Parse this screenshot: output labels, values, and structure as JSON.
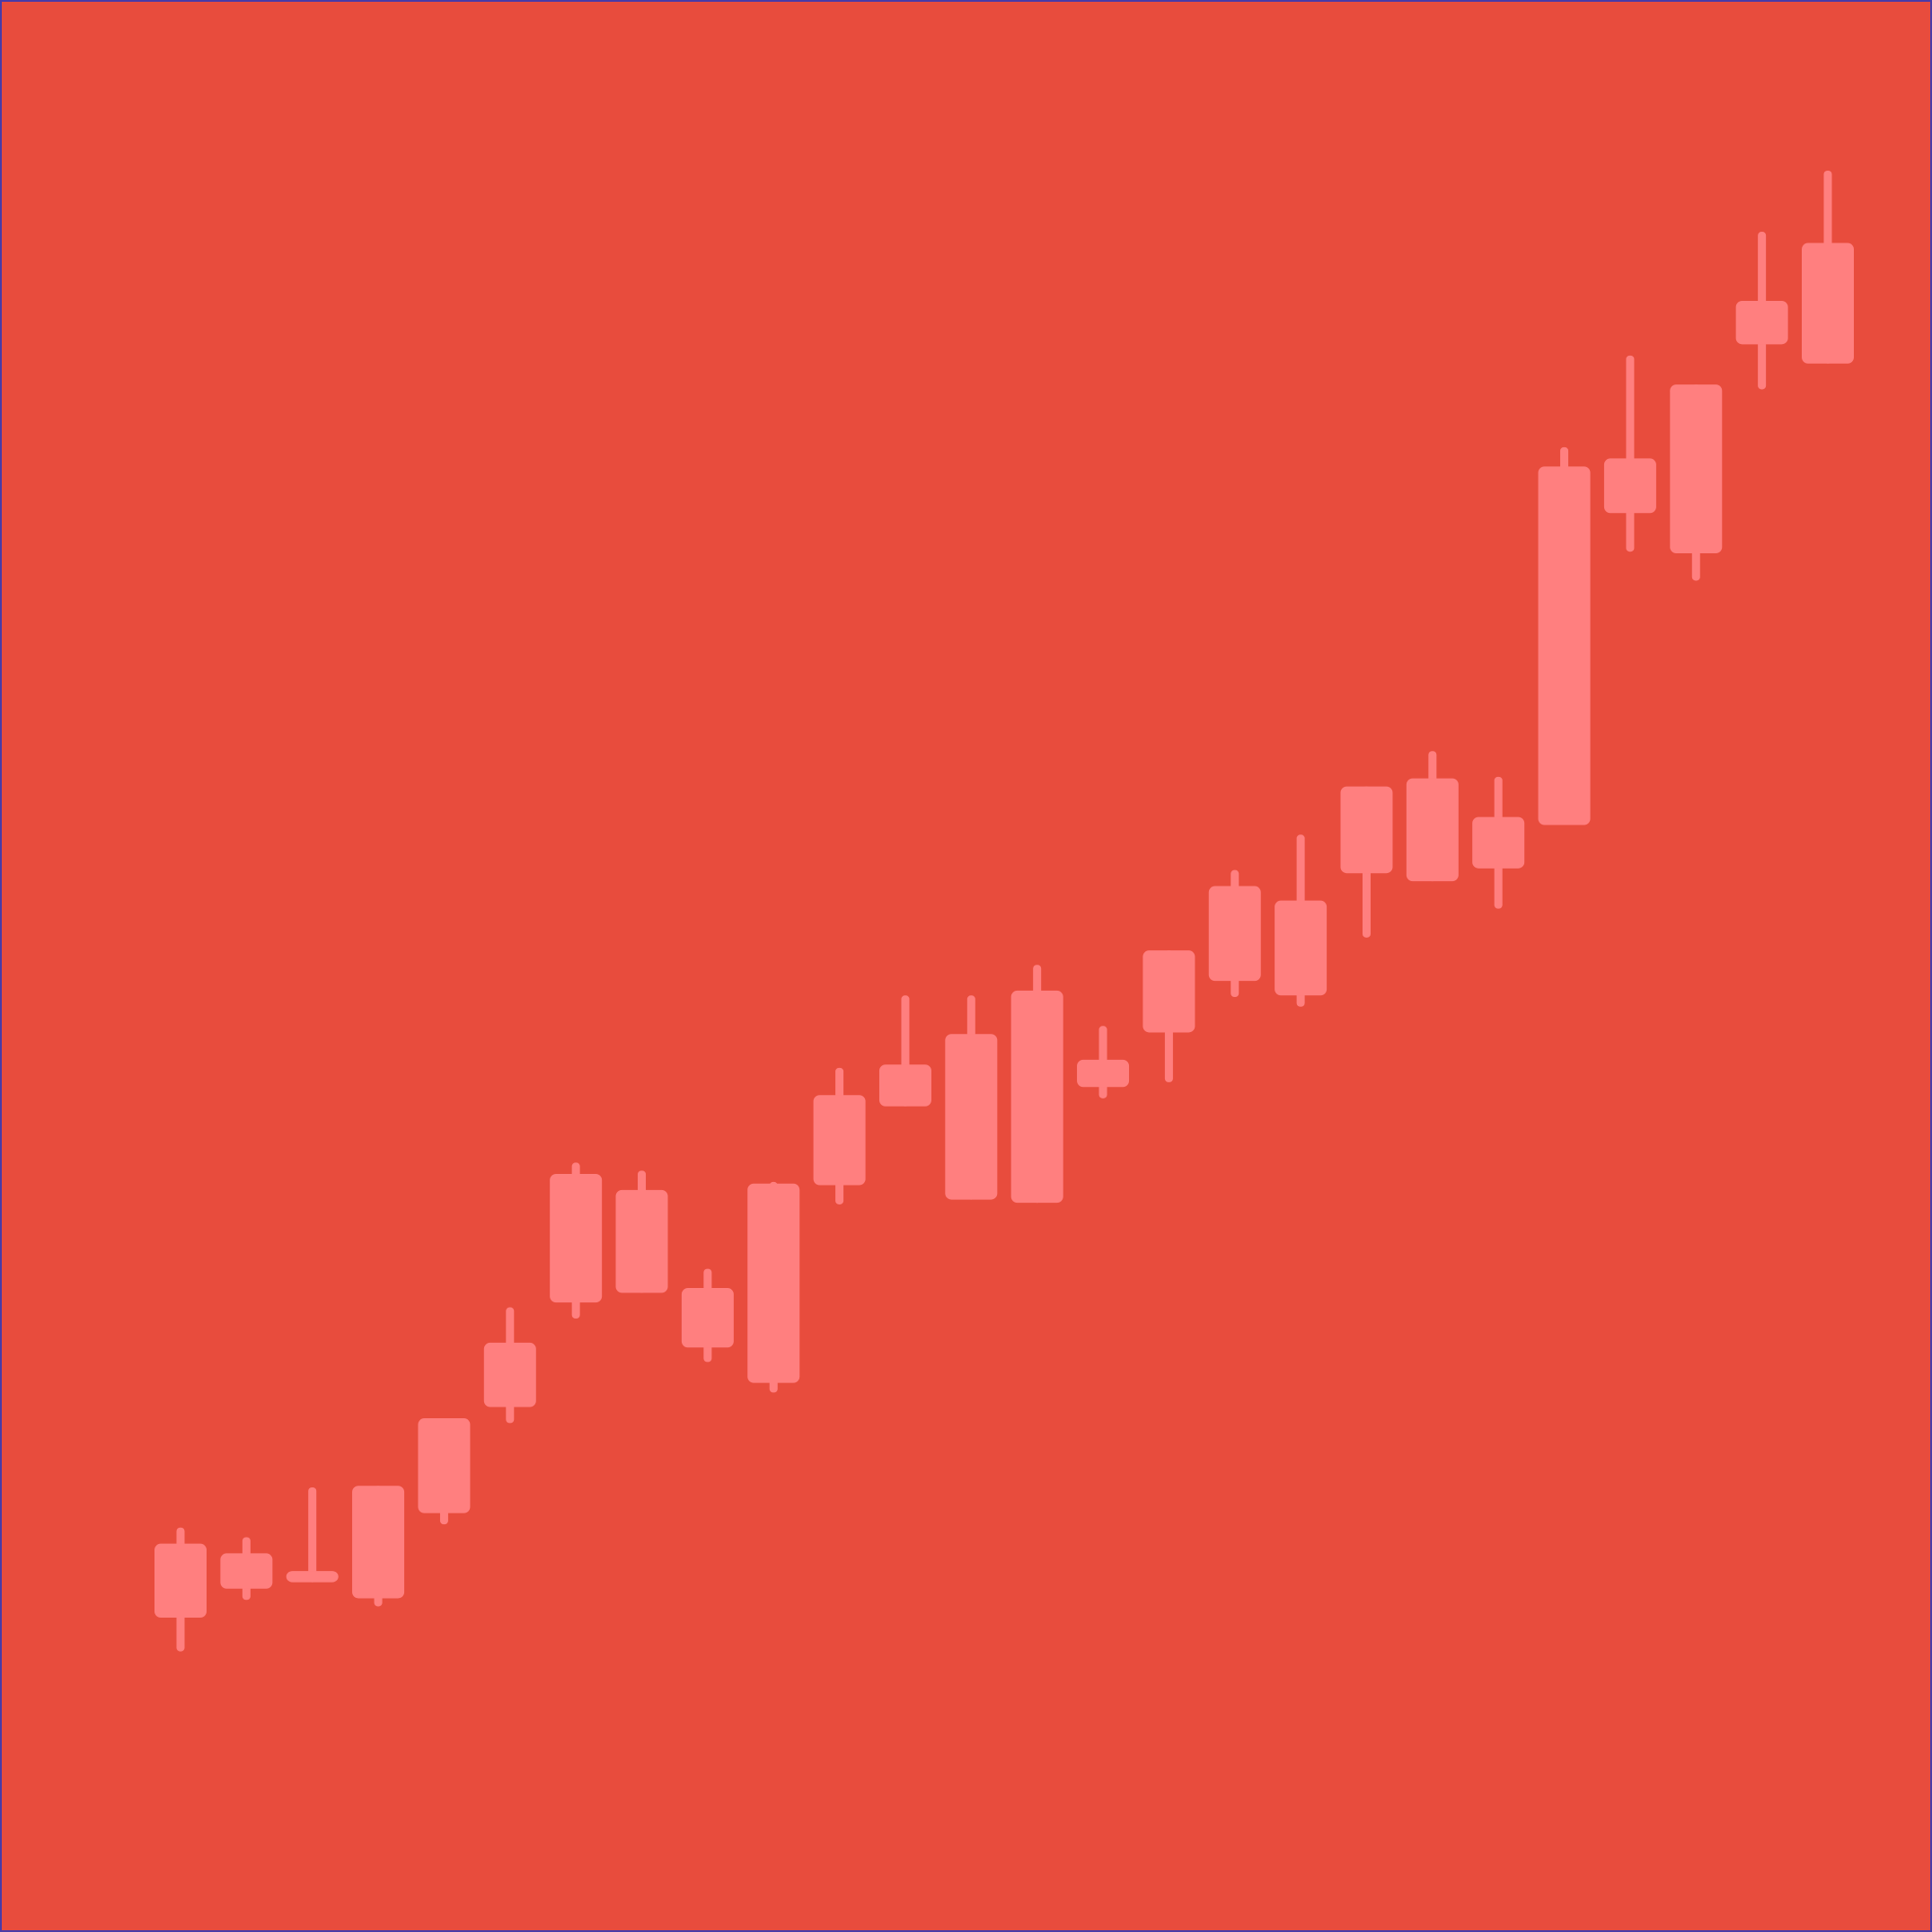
{
  "colors": {
    "background": "#e84c3d",
    "candle": "#ff7f7f",
    "border": "#4a3aa8"
  },
  "chart_data": {
    "type": "candlestick",
    "title": "",
    "xlabel": "",
    "ylabel": "",
    "axes_visible": false,
    "grid": false,
    "legend": "none",
    "ylim": [
      0,
      100
    ],
    "candles": [
      {
        "open": 10.0,
        "close": 14.6,
        "high": 15.6,
        "low": 7.9
      },
      {
        "open": 11.8,
        "close": 14.0,
        "high": 15.0,
        "low": 11.1
      },
      {
        "open": 12.2,
        "close": 12.9,
        "high": 18.1,
        "low": 12.2
      },
      {
        "open": 11.2,
        "close": 18.2,
        "high": 18.2,
        "low": 10.7
      },
      {
        "open": 16.5,
        "close": 22.4,
        "high": 22.4,
        "low": 15.8
      },
      {
        "open": 23.1,
        "close": 27.1,
        "high": 29.3,
        "low": 22.1
      },
      {
        "open": 29.6,
        "close": 37.6,
        "high": 38.3,
        "low": 28.6
      },
      {
        "open": 30.2,
        "close": 36.6,
        "high": 37.8,
        "low": 30.2
      },
      {
        "open": 26.8,
        "close": 30.5,
        "high": 31.7,
        "low": 25.9
      },
      {
        "open": 24.6,
        "close": 37.0,
        "high": 37.1,
        "low": 24.0
      },
      {
        "open": 36.9,
        "close": 42.5,
        "high": 44.2,
        "low": 35.7
      },
      {
        "open": 41.8,
        "close": 44.4,
        "high": 48.7,
        "low": 41.8
      },
      {
        "open": 36.0,
        "close": 46.3,
        "high": 48.7,
        "low": 36.0
      },
      {
        "open": 35.8,
        "close": 49.0,
        "high": 50.6,
        "low": 35.8
      },
      {
        "open": 43.0,
        "close": 44.7,
        "high": 46.8,
        "low": 42.3
      },
      {
        "open": 46.4,
        "close": 51.5,
        "high": 51.5,
        "low": 43.3
      },
      {
        "open": 49.6,
        "close": 55.5,
        "high": 56.5,
        "low": 48.6
      },
      {
        "open": 48.7,
        "close": 54.6,
        "high": 58.7,
        "low": 48.0
      },
      {
        "open": 56.3,
        "close": 61.7,
        "high": 61.7,
        "low": 52.3
      },
      {
        "open": 55.8,
        "close": 62.2,
        "high": 63.9,
        "low": 55.8
      },
      {
        "open": 56.6,
        "close": 59.8,
        "high": 62.3,
        "low": 54.1
      },
      {
        "open": 59.3,
        "close": 81.6,
        "high": 82.8,
        "low": 59.3
      },
      {
        "open": 78.7,
        "close": 82.1,
        "high": 88.5,
        "low": 76.3
      },
      {
        "open": 76.2,
        "close": 86.7,
        "high": 86.7,
        "low": 74.5
      },
      {
        "open": 89.2,
        "close": 91.9,
        "high": 96.2,
        "low": 86.4
      },
      {
        "open": 88.0,
        "close": 95.5,
        "high": 100.0,
        "low": 88.0
      }
    ]
  }
}
